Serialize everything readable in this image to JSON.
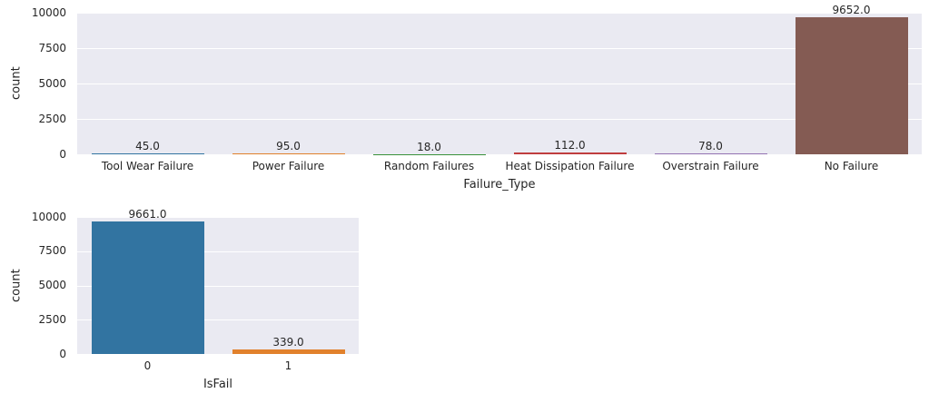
{
  "figure": {
    "background": "#ffffff",
    "plot_background": "#eaeaf2",
    "grid_color": "#ffffff",
    "text_color": "#262626"
  },
  "chart_data": [
    {
      "type": "bar",
      "title": "",
      "xlabel": "Failure_Type",
      "ylabel": "count",
      "categories": [
        "Tool Wear Failure",
        "Power Failure",
        "Random Failures",
        "Heat Dissipation Failure",
        "Overstrain Failure",
        "No Failure"
      ],
      "values": [
        45.0,
        95.0,
        18.0,
        112.0,
        78.0,
        9652.0
      ],
      "bar_labels": [
        "45.0",
        "95.0",
        "18.0",
        "112.0",
        "78.0",
        "9652.0"
      ],
      "bar_colors": [
        "#3274a1",
        "#e1812c",
        "#3a923a",
        "#c03d3e",
        "#9372b2",
        "#845b53"
      ],
      "ylim": [
        0,
        10000
      ],
      "yticks": [
        0,
        2500,
        5000,
        7500,
        10000
      ],
      "ytick_labels": [
        "0",
        "2500",
        "5000",
        "7500",
        "10000"
      ],
      "grid": true,
      "legend_position": "none"
    },
    {
      "type": "bar",
      "title": "",
      "xlabel": "IsFail",
      "ylabel": "count",
      "categories": [
        "0",
        "1"
      ],
      "values": [
        9661.0,
        339.0
      ],
      "bar_labels": [
        "9661.0",
        "339.0"
      ],
      "bar_colors": [
        "#3274a1",
        "#e1812c"
      ],
      "ylim": [
        0,
        10000
      ],
      "yticks": [
        0,
        2500,
        5000,
        7500,
        10000
      ],
      "ytick_labels": [
        "0",
        "2500",
        "5000",
        "7500",
        "10000"
      ],
      "grid": true,
      "legend_position": "none"
    }
  ]
}
